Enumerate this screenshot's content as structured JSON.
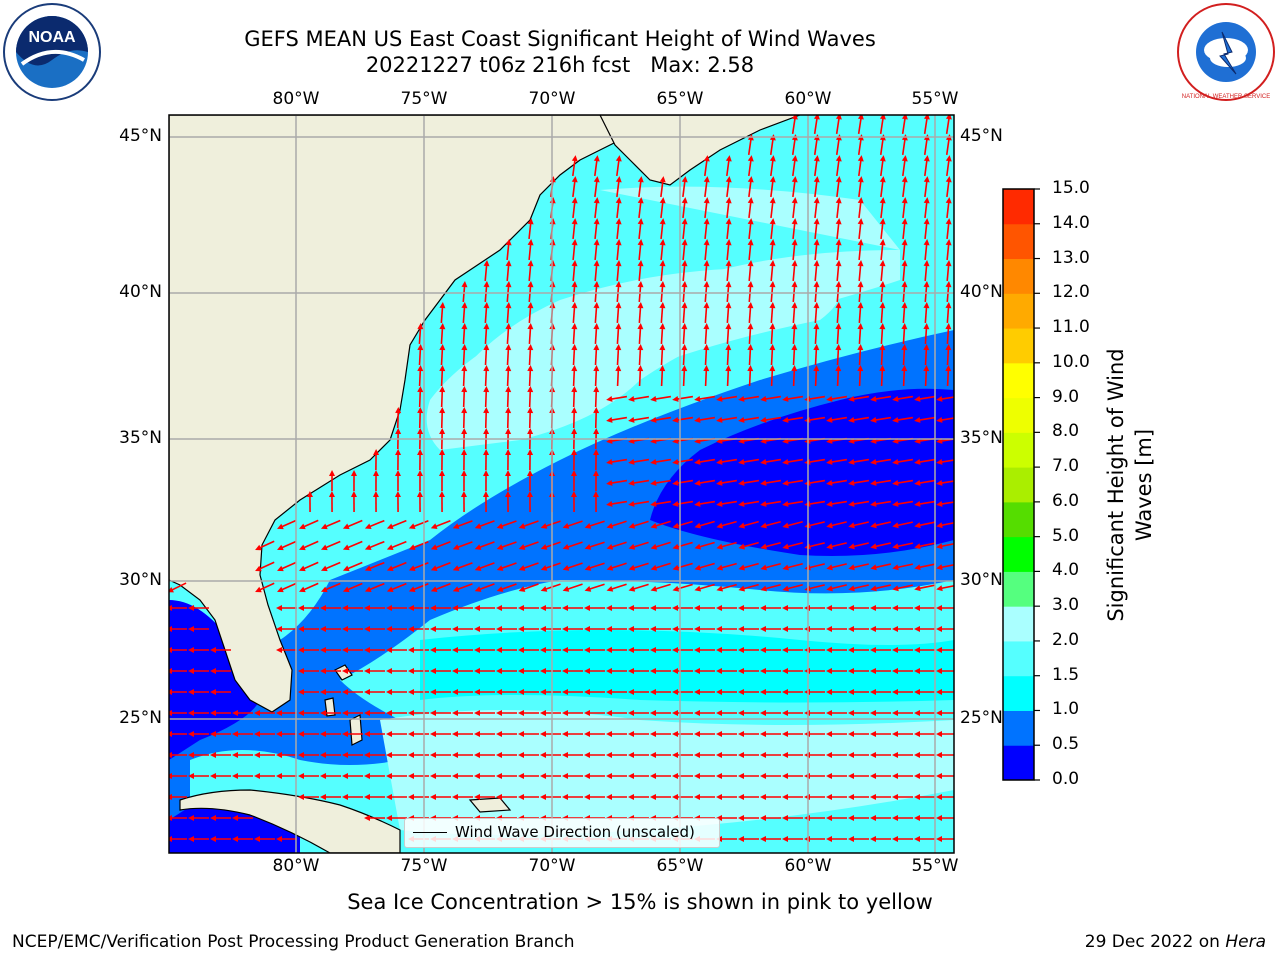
{
  "title": {
    "line1": "GEFS MEAN US East Coast Significant Height of Wind Waves",
    "line2": "20221227 t06z 216h fcst   Max: 2.58"
  },
  "axes": {
    "lon_ticks": [
      "80°W",
      "75°W",
      "70°W",
      "65°W",
      "60°W",
      "55°W"
    ],
    "lat_ticks": [
      "45°N",
      "40°N",
      "35°N",
      "30°N",
      "25°N"
    ],
    "grid": true
  },
  "legend": {
    "label": "Wind Wave Direction (unscaled)"
  },
  "colorbar": {
    "label_line1": "Significant Height of Wind",
    "label_line2": "Waves [m]",
    "ticks": [
      "0.0",
      "0.5",
      "1.0",
      "1.5",
      "2.0",
      "3.0",
      "4.0",
      "5.0",
      "6.0",
      "7.0",
      "8.0",
      "9.0",
      "10.0",
      "11.0",
      "12.0",
      "13.0",
      "14.0",
      "15.0"
    ],
    "colors": [
      "#0000ff",
      "#0073ff",
      "#00ffff",
      "#55ffff",
      "#aaffff",
      "#55ff7f",
      "#00ff00",
      "#55dd00",
      "#aaee00",
      "#ccff00",
      "#eeff00",
      "#ffff00",
      "#ffcc00",
      "#ffaa00",
      "#ff8800",
      "#ff5500",
      "#ff2a00",
      "#ff0000"
    ]
  },
  "notes": {
    "sea_ice": "Sea Ice Concentration > 15% is shown in pink to yellow"
  },
  "footer": {
    "left": "NCEP/EMC/Verification Post Processing Product Generation Branch",
    "date": "29 Dec 2022 on",
    "host": "Hera"
  },
  "logos": {
    "left": "NOAA",
    "right": "NATIONAL WEATHER SERVICE"
  },
  "map_colors": {
    "land": "#efefdc",
    "ocean_light": "#aaffff",
    "ocean_cyan": "#55ffff",
    "ocean_cyan2": "#00ffff",
    "ocean_blue": "#0073ff",
    "ocean_deep": "#0000ff",
    "arrow": "#ff0000"
  }
}
